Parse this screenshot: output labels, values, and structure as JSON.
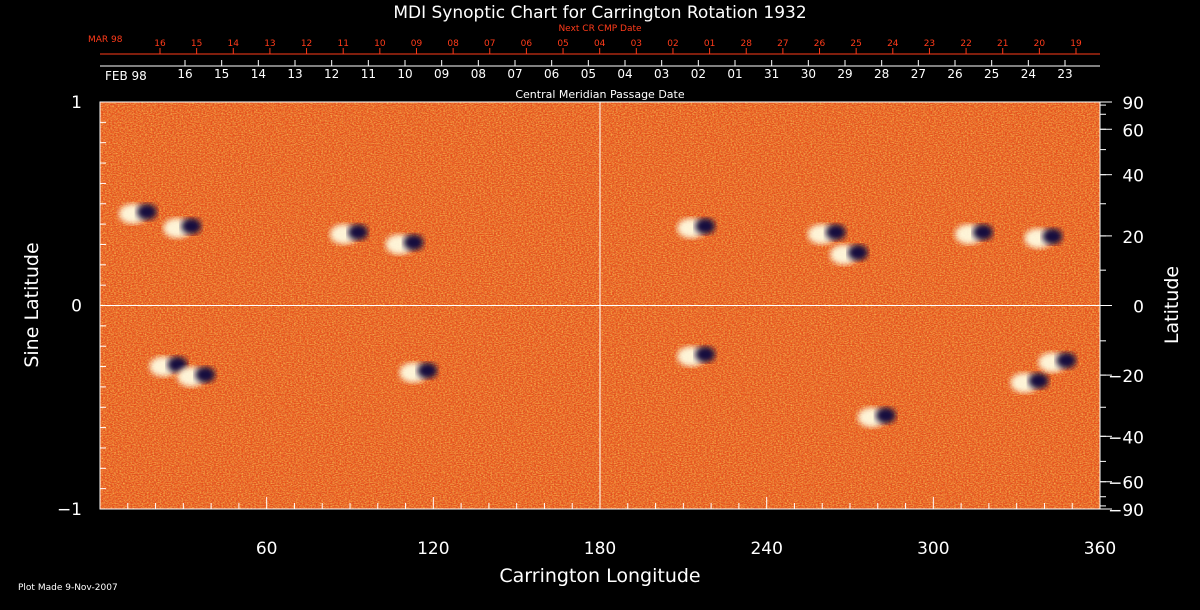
{
  "chart_data": {
    "type": "heatmap",
    "title": "MDI Synoptic Chart for Carrington Rotation 1932",
    "xlabel": "Carrington Longitude",
    "ylabel_left": "Sine Latitude",
    "ylabel_right": "Latitude",
    "xlim": [
      0,
      360
    ],
    "ylim_sine": [
      -1,
      1
    ],
    "x_ticks": [
      60,
      120,
      180,
      240,
      300,
      360
    ],
    "y_ticks_left": [
      1,
      0,
      -1
    ],
    "y_ticks_right": [
      90,
      60,
      40,
      20,
      0,
      -20,
      -40,
      -60,
      -90
    ],
    "gridlines": {
      "x": [
        180
      ],
      "y": [
        0
      ]
    },
    "colormap": {
      "low": "#1a1050",
      "mid": "#e8501a",
      "high": "#ffffff"
    },
    "top_axis": {
      "label": "Central Meridian Passage Date",
      "start_month": "FEB 98",
      "dates": [
        "16",
        "15",
        "14",
        "13",
        "12",
        "11",
        "10",
        "09",
        "08",
        "07",
        "06",
        "05",
        "04",
        "03",
        "02",
        "01",
        "31",
        "30",
        "29",
        "28",
        "27",
        "26",
        "25",
        "24",
        "23"
      ]
    },
    "next_cr_axis": {
      "label": "Next CR CMP Date",
      "start_month": "MAR 98",
      "dates": [
        "16",
        "15",
        "14",
        "13",
        "12",
        "11",
        "10",
        "09",
        "08",
        "07",
        "06",
        "05",
        "04",
        "03",
        "02",
        "01",
        "28",
        "27",
        "26",
        "25",
        "24",
        "23",
        "22",
        "21",
        "20",
        "19"
      ]
    },
    "active_regions": [
      {
        "lon": 14,
        "lat": 0.45
      },
      {
        "lon": 30,
        "lat": 0.38
      },
      {
        "lon": 90,
        "lat": 0.35
      },
      {
        "lon": 110,
        "lat": 0.3
      },
      {
        "lon": 215,
        "lat": 0.38
      },
      {
        "lon": 262,
        "lat": 0.35
      },
      {
        "lon": 270,
        "lat": 0.25
      },
      {
        "lon": 315,
        "lat": 0.35
      },
      {
        "lon": 340,
        "lat": 0.33
      },
      {
        "lon": 25,
        "lat": -0.3
      },
      {
        "lon": 35,
        "lat": -0.35
      },
      {
        "lon": 115,
        "lat": -0.33
      },
      {
        "lon": 215,
        "lat": -0.25
      },
      {
        "lon": 280,
        "lat": -0.55
      },
      {
        "lon": 335,
        "lat": -0.38
      },
      {
        "lon": 345,
        "lat": -0.28
      }
    ]
  },
  "footer": {
    "plot_made": "Plot Made  9-Nov-2007"
  }
}
